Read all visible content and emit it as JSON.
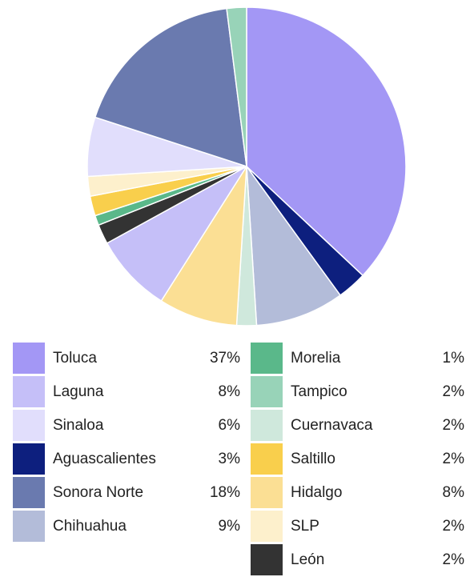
{
  "chart_data": {
    "type": "pie",
    "categories": [
      "Toluca",
      "Aguascalientes",
      "Chihuahua",
      "Cuernavaca",
      "Hidalgo",
      "Laguna",
      "León",
      "Morelia",
      "Saltillo",
      "SLP",
      "Sinaloa",
      "Sonora Norte",
      "Tampico"
    ],
    "values": [
      37,
      3,
      9,
      2,
      8,
      8,
      2,
      1,
      2,
      2,
      6,
      18,
      2
    ],
    "value_labels": [
      "37%",
      "3%",
      "9%",
      "2%",
      "8%",
      "8%",
      "2%",
      "1%",
      "2%",
      "2%",
      "6%",
      "18%",
      "2%"
    ],
    "colors": [
      "#a397f5",
      "#0d1f7e",
      "#b3bcd9",
      "#cfe8dc",
      "#fbdf94",
      "#c5bff8",
      "#333333",
      "#5ab88a",
      "#f9cf4c",
      "#fdf0cc",
      "#e1defc",
      "#6a7aaf",
      "#98d3b8"
    ],
    "legend": "bottom"
  }
}
